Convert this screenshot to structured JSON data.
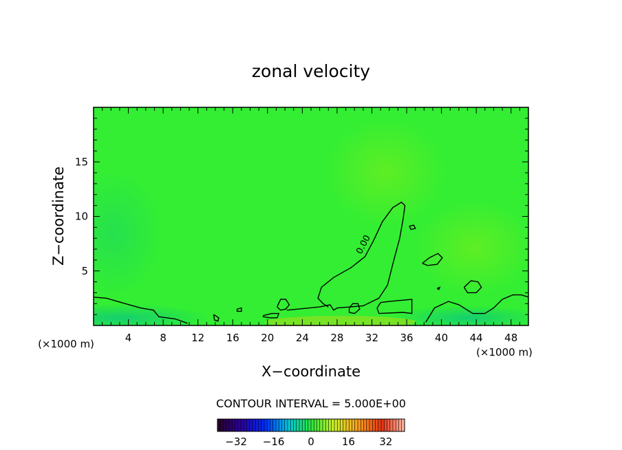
{
  "chart_data": {
    "type": "contour",
    "title": "zonal velocity",
    "xlabel": "X−coordinate",
    "ylabel": "Z−coordinate",
    "x_unit_left": "(×1000 m)",
    "x_unit_right": "(×1000 m)",
    "xlim": [
      0,
      50
    ],
    "ylim": [
      0,
      20
    ],
    "x_ticks": [
      4,
      8,
      12,
      16,
      20,
      24,
      28,
      32,
      36,
      40,
      44,
      48
    ],
    "y_ticks": [
      5,
      10,
      15
    ],
    "contour_interval_label": "CONTOUR INTERVAL = 5.000E+00",
    "contour_levels_labeled": [
      "0.00"
    ],
    "colorbar": {
      "range": [
        -40,
        40
      ],
      "ticks": [
        {
          "value": -32,
          "label": "−32"
        },
        {
          "value": -16,
          "label": "−16"
        },
        {
          "value": 0,
          "label": "0"
        },
        {
          "value": 16,
          "label": "16"
        },
        {
          "value": 32,
          "label": "32"
        }
      ]
    },
    "field_colors": {
      "background": "#33ee33",
      "positive_tint": "#55ee22",
      "negative_tint": "#22dd66"
    },
    "zero_contours": [
      [
        [
          22.2,
          1.4
        ],
        [
          26.0,
          1.7
        ],
        [
          27.2,
          1.9
        ],
        [
          27.6,
          1.4
        ],
        [
          28.0,
          1.6
        ],
        [
          31.0,
          1.8
        ],
        [
          32.8,
          2.5
        ],
        [
          33.8,
          3.7
        ],
        [
          34.4,
          5.6
        ],
        [
          35.2,
          8.0
        ],
        [
          35.6,
          9.8
        ],
        [
          35.8,
          11.0
        ],
        [
          35.4,
          11.3
        ],
        [
          34.4,
          10.8
        ],
        [
          33.2,
          9.5
        ],
        [
          32.2,
          7.8
        ],
        [
          31.2,
          6.3
        ],
        [
          29.6,
          5.3
        ],
        [
          27.6,
          4.4
        ],
        [
          26.2,
          3.5
        ],
        [
          25.8,
          2.5
        ],
        [
          26.4,
          2.0
        ],
        [
          27.0,
          1.7
        ]
      ],
      [
        [
          0.0,
          2.6
        ],
        [
          1.5,
          2.5
        ],
        [
          3.2,
          2.1
        ],
        [
          5.4,
          1.6
        ],
        [
          6.9,
          1.4
        ],
        [
          7.5,
          0.8
        ],
        [
          9.4,
          0.6
        ],
        [
          10.8,
          0.2
        ]
      ],
      [
        [
          32.8,
          1.1
        ],
        [
          35.6,
          1.2
        ],
        [
          36.6,
          1.1
        ],
        [
          36.6,
          2.4
        ],
        [
          34.0,
          2.2
        ],
        [
          33.0,
          2.1
        ],
        [
          32.6,
          1.6
        ],
        [
          32.8,
          1.1
        ]
      ],
      [
        [
          29.4,
          1.6
        ],
        [
          29.8,
          2.0
        ],
        [
          30.4,
          2.0
        ],
        [
          30.6,
          1.5
        ],
        [
          30.0,
          1.1
        ],
        [
          29.4,
          1.2
        ],
        [
          29.4,
          1.6
        ]
      ],
      [
        [
          21.1,
          1.7
        ],
        [
          21.5,
          2.4
        ],
        [
          22.1,
          2.4
        ],
        [
          22.5,
          1.9
        ],
        [
          22.1,
          1.5
        ],
        [
          21.5,
          1.4
        ],
        [
          21.1,
          1.7
        ]
      ],
      [
        [
          19.5,
          0.9
        ],
        [
          20.5,
          1.1
        ],
        [
          21.3,
          1.1
        ],
        [
          21.1,
          0.7
        ],
        [
          20.3,
          0.7
        ],
        [
          19.5,
          0.8
        ],
        [
          19.5,
          0.9
        ]
      ],
      [
        [
          13.8,
          1.0
        ],
        [
          14.4,
          0.7
        ],
        [
          14.3,
          0.4
        ],
        [
          13.9,
          0.5
        ],
        [
          13.8,
          1.0
        ]
      ],
      [
        [
          16.5,
          1.5
        ],
        [
          17.0,
          1.6
        ],
        [
          17.0,
          1.3
        ],
        [
          16.5,
          1.3
        ],
        [
          16.5,
          1.5
        ]
      ],
      [
        [
          37.8,
          5.7
        ],
        [
          38.6,
          6.2
        ],
        [
          39.6,
          6.6
        ],
        [
          40.1,
          6.2
        ],
        [
          39.5,
          5.6
        ],
        [
          38.4,
          5.5
        ],
        [
          37.8,
          5.7
        ]
      ],
      [
        [
          36.3,
          9.1
        ],
        [
          36.8,
          9.2
        ],
        [
          37.0,
          8.9
        ],
        [
          36.5,
          8.8
        ],
        [
          36.3,
          9.1
        ]
      ],
      [
        [
          42.6,
          3.5
        ],
        [
          43.4,
          4.1
        ],
        [
          44.2,
          4.0
        ],
        [
          44.6,
          3.5
        ],
        [
          44.0,
          3.0
        ],
        [
          43.0,
          3.0
        ],
        [
          42.6,
          3.5
        ]
      ],
      [
        [
          39.5,
          3.4
        ],
        [
          39.8,
          3.5
        ],
        [
          39.7,
          3.3
        ],
        [
          39.5,
          3.4
        ]
      ],
      [
        [
          38.2,
          0.3
        ],
        [
          39.2,
          1.6
        ],
        [
          40.8,
          2.2
        ],
        [
          42.0,
          1.9
        ],
        [
          43.6,
          1.1
        ],
        [
          45.0,
          1.1
        ],
        [
          46.0,
          1.6
        ],
        [
          47.0,
          2.4
        ],
        [
          48.2,
          2.8
        ],
        [
          49.2,
          2.8
        ],
        [
          50.0,
          2.6
        ]
      ]
    ],
    "level_label": {
      "text": "0.00",
      "x": 31.3,
      "z": 7.3,
      "angle": -62
    }
  }
}
